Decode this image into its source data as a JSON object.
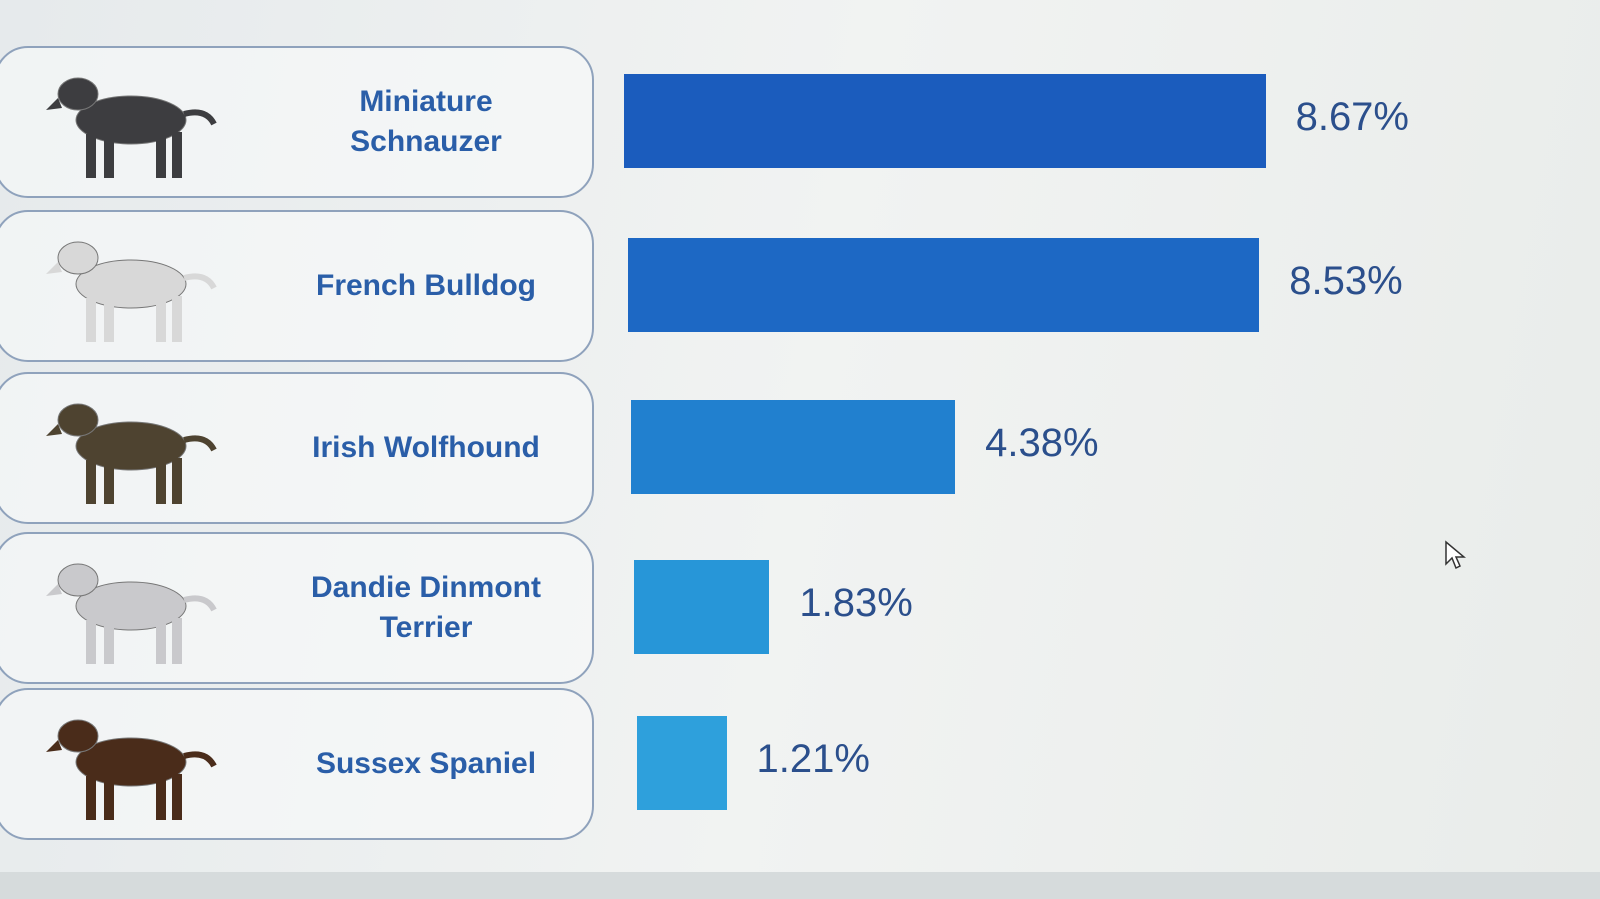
{
  "chart_data": {
    "type": "bar",
    "orientation": "horizontal",
    "categories": [
      "Miniature Schnauzer",
      "French Bulldog",
      "Irish Wolfhound",
      "Dandie Dinmont Terrier",
      "Sussex Spaniel"
    ],
    "values": [
      8.67,
      8.53,
      4.38,
      1.83,
      1.21
    ],
    "value_labels": [
      "8.67%",
      "8.53%",
      "4.38%",
      "1.83%",
      "1.21%"
    ],
    "colors": [
      "#1b5cbd",
      "#1d68c4",
      "#2180cf",
      "#2796d8",
      "#2ea0dc"
    ]
  }
}
